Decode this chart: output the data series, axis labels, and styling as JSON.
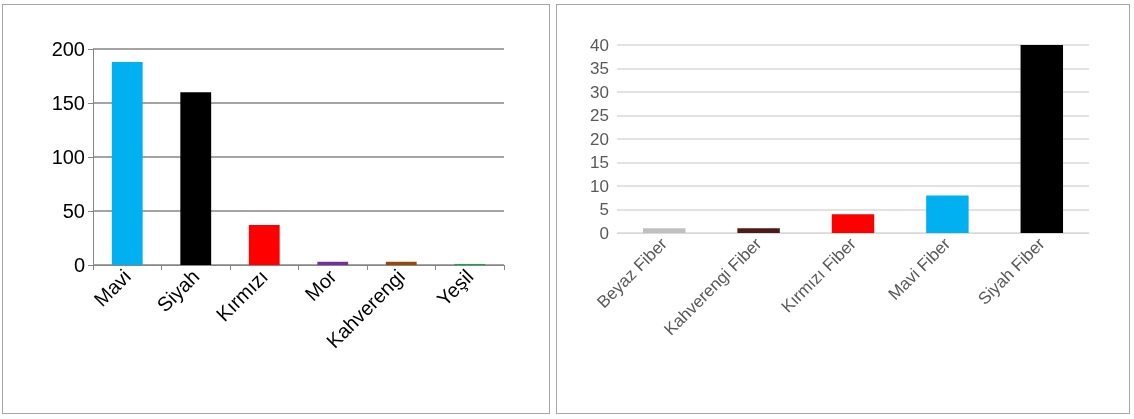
{
  "chart_data": [
    {
      "type": "bar",
      "categories": [
        "Mavi",
        "Siyah",
        "Kırmızı",
        "Mor",
        "Kahverengi",
        "Yeşil"
      ],
      "values": [
        188,
        160,
        37,
        3,
        3,
        1
      ],
      "colors": [
        "#00b0f0",
        "#000000",
        "#ff0000",
        "#7030a0",
        "#984807",
        "#00b050"
      ],
      "ylim": [
        0,
        200
      ],
      "yticks": [
        0,
        50,
        100,
        150,
        200
      ],
      "grid": "y"
    },
    {
      "type": "bar",
      "categories": [
        "Beyaz Fiber",
        "Kahverengi Fiber",
        "Kırmızı Fiber",
        "Mavi Fiber",
        "Siyah Fiber"
      ],
      "values": [
        1,
        1,
        4,
        8,
        40
      ],
      "colors": [
        "#c0c0c0",
        "#4d1a1a",
        "#ff0000",
        "#00b0f0",
        "#000000"
      ],
      "ylim": [
        0,
        40
      ],
      "yticks": [
        0,
        5,
        10,
        15,
        20,
        25,
        30,
        35,
        40
      ],
      "grid": "y"
    }
  ]
}
